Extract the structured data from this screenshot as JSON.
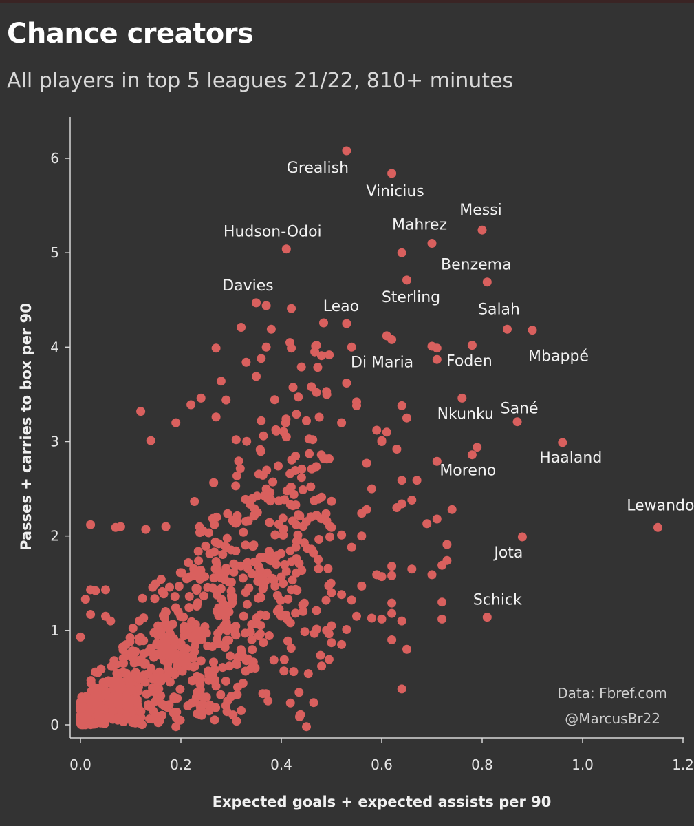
{
  "title": "Chance creators",
  "subtitle": "All players in top 5 leagues 21/22, 810+ minutes",
  "credits": {
    "source": "Data: Fbref.com",
    "handle": "@MarcusBr22"
  },
  "colors": {
    "background": "#333333",
    "point": "#d9605e",
    "text": "#e6e6e6"
  },
  "chart_data": {
    "type": "scatter",
    "title": "Chance creators",
    "subtitle": "All players in top 5 leagues 21/22, 810+ minutes",
    "xlabel": "Expected goals + expected assists per 90",
    "ylabel": "Passes + carries to box per 90",
    "xlim": [
      -0.02,
      1.22
    ],
    "ylim": [
      -0.12,
      6.4
    ],
    "xticks": [
      "0.0",
      "0.2",
      "0.4",
      "0.6",
      "0.8",
      "1.0",
      "1.2"
    ],
    "yticks": [
      "0",
      "1",
      "2",
      "3",
      "4",
      "5",
      "6"
    ],
    "grid": false,
    "labeled_points": [
      {
        "name": "Grealish",
        "x": 0.53,
        "y": 6.08
      },
      {
        "name": "Vinicius",
        "x": 0.62,
        "y": 5.84
      },
      {
        "name": "Messi",
        "x": 0.8,
        "y": 5.24
      },
      {
        "name": "Mahrez",
        "x": 0.7,
        "y": 5.1
      },
      {
        "name": "Hudson-Odoi",
        "x": 0.41,
        "y": 5.04
      },
      {
        "name": "Benzema",
        "x": 0.81,
        "y": 4.69
      },
      {
        "name": "Sterling",
        "x": 0.65,
        "y": 4.71
      },
      {
        "name": "Davies",
        "x": 0.35,
        "y": 4.47
      },
      {
        "name": "Leao",
        "x": 0.53,
        "y": 4.25
      },
      {
        "name": "Salah",
        "x": 0.85,
        "y": 4.19
      },
      {
        "name": "Mbappé",
        "x": 0.9,
        "y": 4.18
      },
      {
        "name": "Di Maria",
        "x": 0.62,
        "y": 4.08
      },
      {
        "name": "Foden",
        "x": 0.78,
        "y": 4.02
      },
      {
        "name": "Nkunku",
        "x": 0.76,
        "y": 3.46
      },
      {
        "name": "Sané",
        "x": 0.87,
        "y": 3.21
      },
      {
        "name": "Haaland",
        "x": 0.96,
        "y": 2.99
      },
      {
        "name": "Moreno",
        "x": 0.71,
        "y": 2.79
      },
      {
        "name": "Lewandowski",
        "x": 1.15,
        "y": 2.09
      },
      {
        "name": "Jota",
        "x": 0.88,
        "y": 1.99
      },
      {
        "name": "Schick",
        "x": 0.81,
        "y": 1.14
      }
    ],
    "other_points": [
      [
        0.64,
        5.0
      ],
      [
        0.42,
        4.41
      ],
      [
        0.37,
        4.44
      ],
      [
        0.61,
        4.12
      ],
      [
        0.7,
        4.01
      ],
      [
        0.71,
        3.99
      ],
      [
        0.71,
        3.87
      ],
      [
        0.54,
        4.0
      ],
      [
        0.32,
        4.21
      ],
      [
        0.38,
        4.19
      ],
      [
        0.27,
        3.99
      ],
      [
        0.37,
        4.0
      ],
      [
        0.36,
        3.88
      ],
      [
        0.42,
        3.99
      ],
      [
        0.47,
        4.02
      ],
      [
        0.48,
        3.91
      ],
      [
        0.44,
        3.79
      ],
      [
        0.33,
        3.84
      ],
      [
        0.35,
        3.69
      ],
      [
        0.28,
        3.64
      ],
      [
        0.46,
        3.58
      ],
      [
        0.47,
        3.52
      ],
      [
        0.49,
        3.53
      ],
      [
        0.53,
        3.62
      ],
      [
        0.55,
        3.42
      ],
      [
        0.55,
        3.38
      ],
      [
        0.64,
        3.38
      ],
      [
        0.65,
        3.25
      ],
      [
        0.43,
        3.29
      ],
      [
        0.45,
        3.22
      ],
      [
        0.52,
        3.2
      ],
      [
        0.59,
        3.12
      ],
      [
        0.6,
        3.01
      ],
      [
        0.61,
        3.1
      ],
      [
        0.6,
        3.0
      ],
      [
        0.63,
        2.92
      ],
      [
        0.57,
        2.77
      ],
      [
        0.64,
        2.59
      ],
      [
        0.67,
        2.59
      ],
      [
        0.79,
        2.94
      ],
      [
        0.78,
        2.86
      ],
      [
        0.66,
        2.38
      ],
      [
        0.74,
        2.28
      ],
      [
        0.71,
        2.18
      ],
      [
        0.69,
        2.13
      ],
      [
        0.64,
        2.34
      ],
      [
        0.63,
        2.3
      ],
      [
        0.57,
        2.28
      ],
      [
        0.73,
        1.91
      ],
      [
        0.72,
        1.69
      ],
      [
        0.73,
        1.74
      ],
      [
        0.7,
        1.59
      ],
      [
        0.72,
        1.3
      ],
      [
        0.72,
        1.12
      ],
      [
        0.66,
        1.65
      ],
      [
        0.62,
        1.68
      ],
      [
        0.62,
        1.58
      ],
      [
        0.6,
        1.57
      ],
      [
        0.59,
        1.59
      ],
      [
        0.62,
        1.29
      ],
      [
        0.62,
        1.18
      ],
      [
        0.6,
        1.12
      ],
      [
        0.58,
        1.13
      ],
      [
        0.64,
        1.1
      ],
      [
        0.62,
        0.9
      ],
      [
        0.65,
        0.8
      ],
      [
        0.64,
        0.38
      ],
      [
        0.54,
        1.32
      ],
      [
        0.56,
        1.47
      ],
      [
        0.5,
        1.4
      ],
      [
        0.52,
        1.38
      ],
      [
        0.55,
        1.15
      ],
      [
        0.53,
        1.01
      ],
      [
        0.52,
        0.85
      ],
      [
        0.5,
        0.87
      ],
      [
        0.45,
        -0.02
      ],
      [
        0.19,
        -0.02
      ],
      [
        0.12,
        3.32
      ],
      [
        0.14,
        3.01
      ],
      [
        0.19,
        3.2
      ],
      [
        0.22,
        3.39
      ],
      [
        0.24,
        3.46
      ],
      [
        0.27,
        3.26
      ],
      [
        0.29,
        3.44
      ],
      [
        0.31,
        3.02
      ],
      [
        0.36,
        3.22
      ],
      [
        0.39,
        3.11
      ],
      [
        0.41,
        3.05
      ],
      [
        0.58,
        2.5
      ],
      [
        0.56,
        2.24
      ],
      [
        0.56,
        2.0
      ],
      [
        0.54,
        1.88
      ],
      [
        0.5,
        2.09
      ],
      [
        0.52,
        2.01
      ],
      [
        0.47,
        2.22
      ],
      [
        0.46,
        1.86
      ],
      [
        0.43,
        1.76
      ],
      [
        0.43,
        1.61
      ],
      [
        0.42,
        1.43
      ],
      [
        0.5,
        1.05
      ],
      [
        0.49,
        1.0
      ],
      [
        0.47,
        1.21
      ],
      [
        0.34,
        0.6
      ],
      [
        0.31,
        0.65
      ],
      [
        0.27,
        0.41
      ],
      [
        0.3,
        0.3
      ],
      [
        0.32,
        0.15
      ],
      [
        0.02,
        2.12
      ],
      [
        0.07,
        2.09
      ],
      [
        0.08,
        2.1
      ],
      [
        0.13,
        2.07
      ],
      [
        0.17,
        2.1
      ],
      [
        0.01,
        1.33
      ],
      [
        0.02,
        1.43
      ],
      [
        0.03,
        1.42
      ],
      [
        0.05,
        1.43
      ],
      [
        0.02,
        1.17
      ],
      [
        0.0,
        0.93
      ],
      [
        0.05,
        1.15
      ],
      [
        0.06,
        1.1
      ]
    ],
    "cluster_seed": 7,
    "cluster_count": 900
  }
}
